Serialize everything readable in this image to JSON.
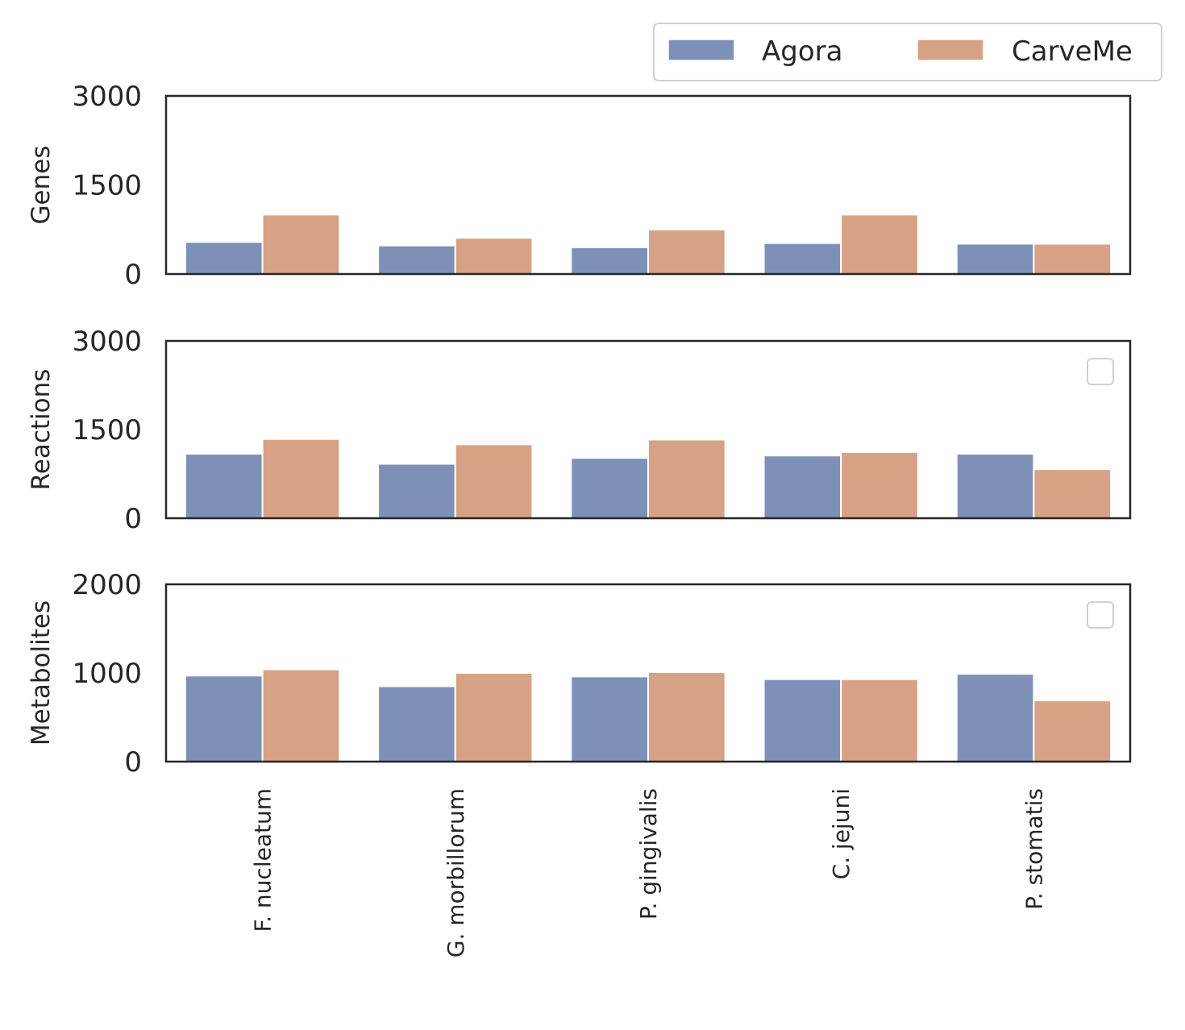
{
  "colors": {
    "Agora": "#7d91b8",
    "CarveMe": "#d7a283",
    "axis": "#262626",
    "barEdge": "#ffffff"
  },
  "legend": {
    "placement": "top-right",
    "ncol": 2,
    "items": [
      "Agora",
      "CarveMe"
    ]
  },
  "chart_data": [
    {
      "type": "bar",
      "ylabel": "Genes",
      "ylim": [
        0,
        3000
      ],
      "yticks": [
        0,
        1500,
        3000
      ],
      "categories": [
        "F. nucleatum",
        "G. morbillorum",
        "P. gingivalis",
        "C. jejuni",
        "P. stomatis"
      ],
      "series": [
        {
          "name": "Agora",
          "values": [
            540,
            480,
            450,
            520,
            510
          ]
        },
        {
          "name": "CarveMe",
          "values": [
            1000,
            610,
            750,
            1000,
            510
          ]
        }
      ],
      "empty_legend": false
    },
    {
      "type": "bar",
      "ylabel": "Reactions",
      "ylim": [
        0,
        3000
      ],
      "yticks": [
        0,
        1500,
        3000
      ],
      "categories": [
        "F. nucleatum",
        "G. morbillorum",
        "P. gingivalis",
        "C. jejuni",
        "P. stomatis"
      ],
      "series": [
        {
          "name": "Agora",
          "values": [
            1090,
            920,
            1020,
            1060,
            1090
          ]
        },
        {
          "name": "CarveMe",
          "values": [
            1340,
            1250,
            1330,
            1120,
            830
          ]
        }
      ],
      "empty_legend": true
    },
    {
      "type": "bar",
      "ylabel": "Metabolites",
      "ylim": [
        0,
        2000
      ],
      "yticks": [
        0,
        1000,
        2000
      ],
      "categories": [
        "F. nucleatum",
        "G. morbillorum",
        "P. gingivalis",
        "C. jejuni",
        "P. stomatis"
      ],
      "series": [
        {
          "name": "Agora",
          "values": [
            970,
            850,
            960,
            930,
            990
          ]
        },
        {
          "name": "CarveMe",
          "values": [
            1040,
            1000,
            1010,
            930,
            690
          ]
        }
      ],
      "empty_legend": true
    }
  ]
}
